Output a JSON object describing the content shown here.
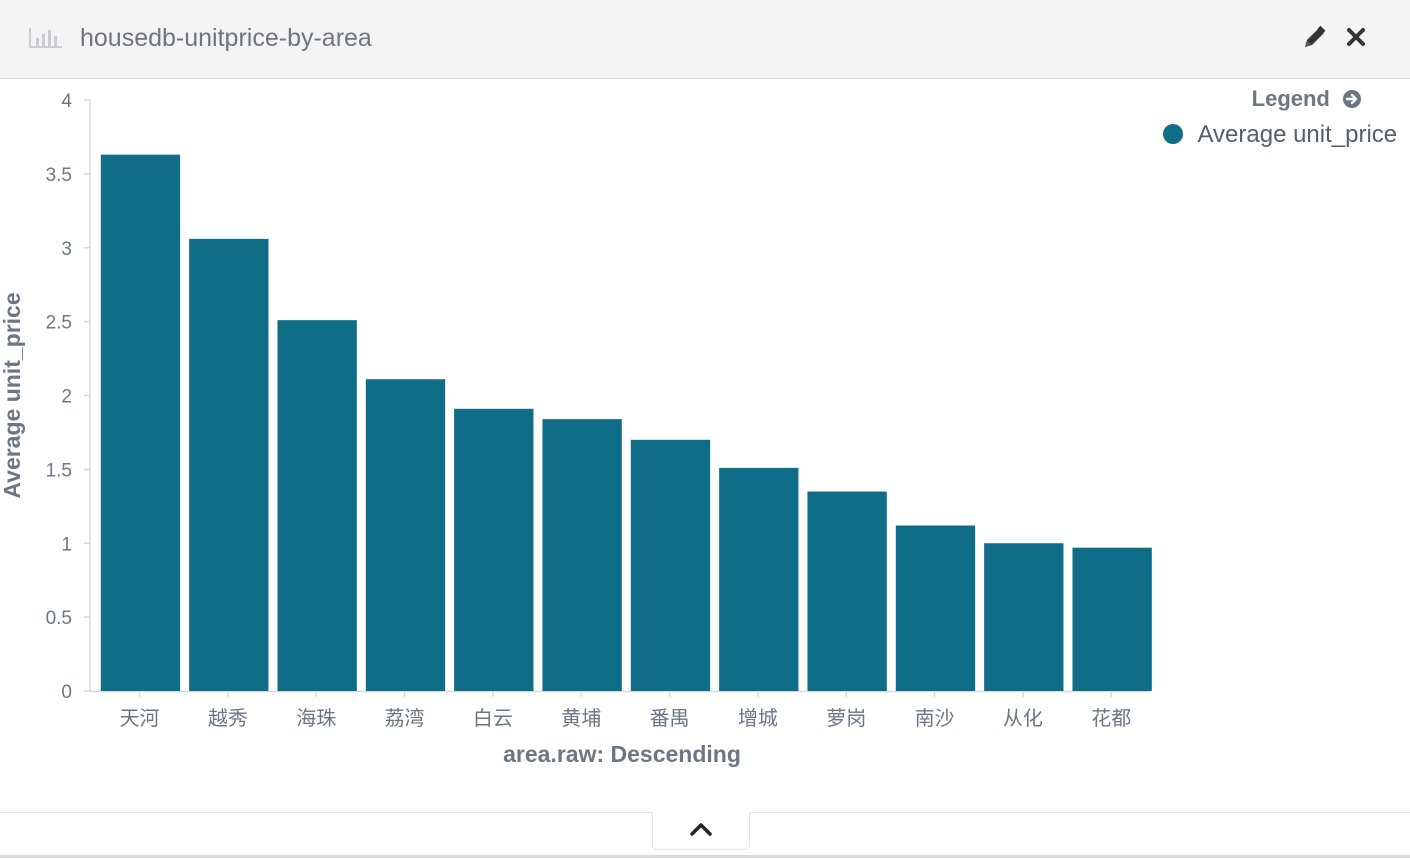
{
  "panel": {
    "title": "housedb-unitprice-by-area"
  },
  "header_icons": {
    "chart": "bar-chart-icon",
    "edit": "pencil-icon",
    "close": "close-icon"
  },
  "legend": {
    "toggle_label": "Legend",
    "toggle_icon": "arrow-circle-right-icon",
    "entries": [
      {
        "label": "Average unit_price",
        "color": "#106d87"
      }
    ]
  },
  "footer": {
    "collapse_icon": "chevron-up-icon"
  },
  "colors": {
    "bar": "#106d87",
    "axis_text": "#6d7784",
    "header_bg": "#f4f4f4"
  },
  "chart_data": {
    "type": "bar",
    "categories": [
      "天河",
      "越秀",
      "海珠",
      "荔湾",
      "白云",
      "黄埔",
      "番禺",
      "增城",
      "萝岗",
      "南沙",
      "从化",
      "花都"
    ],
    "series": [
      {
        "name": "Average unit_price",
        "values": [
          3.63,
          3.06,
          2.51,
          2.11,
          1.91,
          1.84,
          1.7,
          1.51,
          1.35,
          1.12,
          1.0,
          0.97
        ]
      }
    ],
    "xlabel": "area.raw: Descending",
    "ylabel": "Average unit_price",
    "ylim": [
      0,
      4
    ],
    "yticks": [
      "0",
      "0.5",
      "1",
      "1.5",
      "2",
      "2.5",
      "3",
      "3.5",
      "4"
    ],
    "grid": false,
    "legend_position": "top-right"
  }
}
